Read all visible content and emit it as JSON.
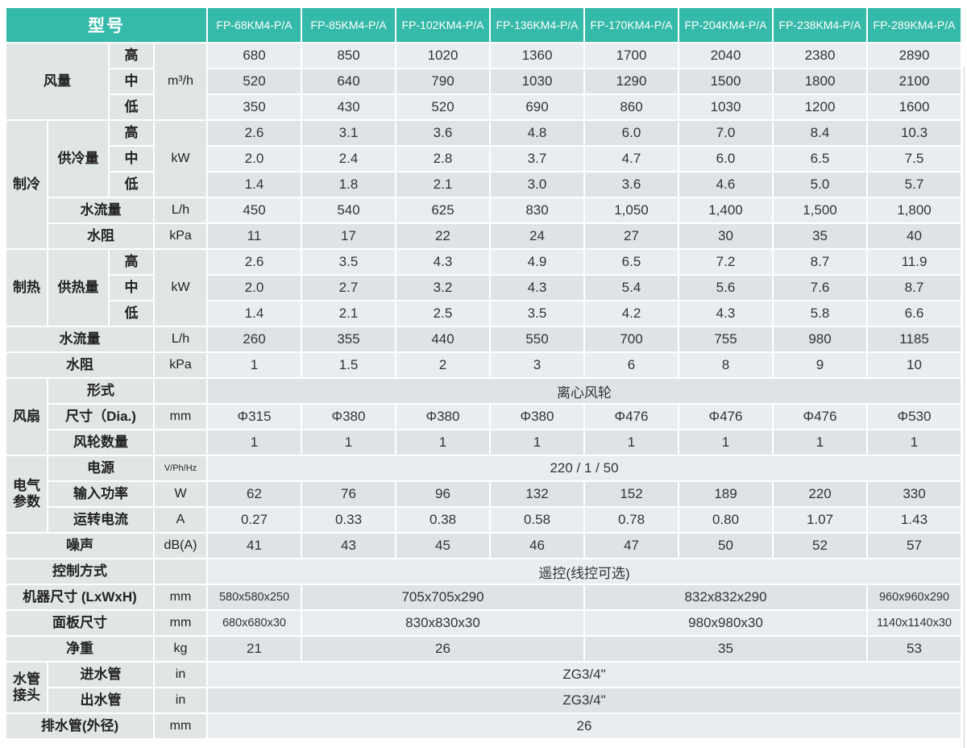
{
  "header": {
    "model_label": "型号",
    "models": [
      "FP-68KM4-P/A",
      "FP-85KM4-P/A",
      "FP-102KM4-P/A",
      "FP-136KM4-P/A",
      "FP-170KM4-P/A",
      "FP-204KM4-P/A",
      "FP-238KM4-P/A",
      "FP-289KM4-P/A"
    ]
  },
  "labels": {
    "airflow": "风量",
    "high": "高",
    "mid": "中",
    "low": "低",
    "cooling": "制冷",
    "cooling_capacity": "供冷量",
    "heating": "制热",
    "heating_capacity": "供热量",
    "water_flow": "水流量",
    "water_resistance": "水阻",
    "fan": "风扇",
    "fan_type": "形式",
    "fan_size": "尺寸（Dia.)",
    "fan_count": "风轮数量",
    "electrical": "电气参数",
    "power_supply": "电源",
    "input_power": "输入功率",
    "running_current": "运转电流",
    "noise": "噪声",
    "control": "控制方式",
    "unit_size": "机器尺寸 (LxWxH)",
    "panel_size": "面板尺寸",
    "net_weight": "净重",
    "pipe_joint": "水管接头",
    "inlet_pipe": "进水管",
    "outlet_pipe": "出水管",
    "drain_pipe": "排水管(外径)"
  },
  "units": {
    "airflow": "m³/h",
    "kw": "kW",
    "lh": "L/h",
    "kpa": "kPa",
    "mm": "mm",
    "vphhz": "V/Ph/Hz",
    "w": "W",
    "a": "A",
    "dba": "dB(A)",
    "kg": "kg",
    "in": "in"
  },
  "values": {
    "airflow": {
      "high": [
        "680",
        "850",
        "1020",
        "1360",
        "1700",
        "2040",
        "2380",
        "2890"
      ],
      "mid": [
        "520",
        "640",
        "790",
        "1030",
        "1290",
        "1500",
        "1800",
        "2100"
      ],
      "low": [
        "350",
        "430",
        "520",
        "690",
        "860",
        "1030",
        "1200",
        "1600"
      ]
    },
    "cooling": {
      "high": [
        "2.6",
        "3.1",
        "3.6",
        "4.8",
        "6.0",
        "7.0",
        "8.4",
        "10.3"
      ],
      "mid": [
        "2.0",
        "2.4",
        "2.8",
        "3.7",
        "4.7",
        "6.0",
        "6.5",
        "7.5"
      ],
      "low": [
        "1.4",
        "1.8",
        "2.1",
        "3.0",
        "3.6",
        "4.6",
        "5.0",
        "5.7"
      ],
      "water_flow": [
        "450",
        "540",
        "625",
        "830",
        "1,050",
        "1,400",
        "1,500",
        "1,800"
      ],
      "water_resistance": [
        "11",
        "17",
        "22",
        "24",
        "27",
        "30",
        "35",
        "40"
      ]
    },
    "heating": {
      "high": [
        "2.6",
        "3.5",
        "4.3",
        "4.9",
        "6.5",
        "7.2",
        "8.7",
        "11.9"
      ],
      "mid": [
        "2.0",
        "2.7",
        "3.2",
        "4.3",
        "5.4",
        "5.6",
        "7.6",
        "8.7"
      ],
      "low": [
        "1.4",
        "2.1",
        "2.5",
        "3.5",
        "4.2",
        "4.3",
        "5.8",
        "6.6"
      ],
      "water_flow": [
        "260",
        "355",
        "440",
        "550",
        "700",
        "755",
        "980",
        "1185"
      ],
      "water_resistance": [
        "1",
        "1.5",
        "2",
        "3",
        "6",
        "8",
        "9",
        "10"
      ]
    },
    "fan": {
      "type": "离心风轮",
      "sizes": [
        "Φ315",
        "Φ380",
        "Φ380",
        "Φ380",
        "Φ476",
        "Φ476",
        "Φ476",
        "Φ530"
      ],
      "counts": [
        "1",
        "1",
        "1",
        "1",
        "1",
        "1",
        "1",
        "1"
      ]
    },
    "electrical": {
      "power_supply": "220 / 1 / 50",
      "input_power": [
        "62",
        "76",
        "96",
        "132",
        "152",
        "189",
        "220",
        "330"
      ],
      "running_current": [
        "0.27",
        "0.33",
        "0.38",
        "0.58",
        "0.78",
        "0.80",
        "1.07",
        "1.43"
      ]
    },
    "noise": [
      "41",
      "43",
      "45",
      "46",
      "47",
      "50",
      "52",
      "57"
    ],
    "control": "遥控(线控可选)",
    "unit_size": [
      "580x580x250",
      "705x705x290",
      "832x832x290",
      "960x960x290"
    ],
    "panel_size": [
      "680x680x30",
      "830x830x30",
      "980x980x30",
      "1140x1140x30"
    ],
    "net_weight": [
      "21",
      "26",
      "35",
      "53"
    ],
    "pipes": {
      "inlet": "ZG3/4\"",
      "outlet": "ZG3/4\"",
      "drain": "26"
    }
  }
}
